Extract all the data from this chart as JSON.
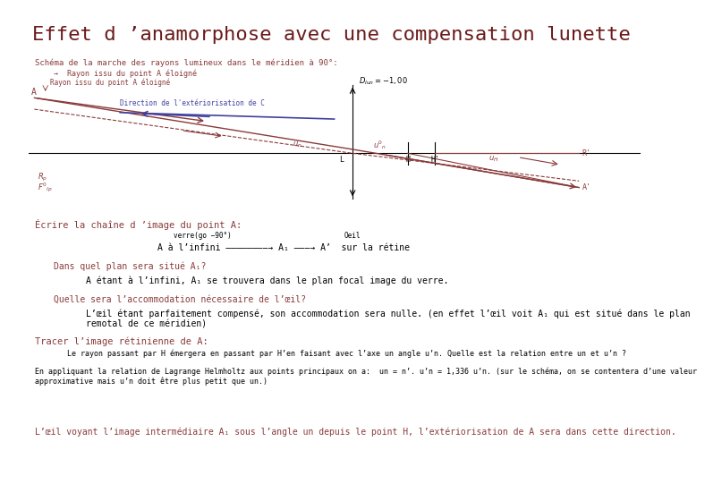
{
  "title": "Effet d ’anamorphose avec une compensation lunette",
  "title_color": "#6B1A1A",
  "title_fontsize": 16,
  "bg_color": "#FFFFFF",
  "diagram_color": "#8B3A3A",
  "blue_color": "#4040A0",
  "axis_color": "#000000",
  "subtitle": "Schéma de la marche des rayons lumineux dans le méridien à 90°:",
  "subtitle_fontsize": 7,
  "label_fontsize": 6,
  "text_color": "#8B3A3A",
  "text_color2": "#4040A0",
  "section1_title": "Écrire la chaîne d ’image du point A:",
  "section1_body": "A à l’infini ——————→ A₁ ———→ A’  sur la rétine",
  "section1_arrow1": "verre(go −90°)",
  "section1_arrow2": "Oeil",
  "section2_q": "Dans quel plan sera situé A₁?",
  "section2_a": "A étant à l’infini, A₁ se trouvera dans le plan focal image du verre.",
  "section3_q": "Quelle sera l’accommodation nécessaire de l’œil?",
  "section3_a": "L’œil étant parfaitement compensé, son accommodation sera nulle. (en effet l’œil voit A₁ qui est situé dans le plan\nremotal de ce méridien)",
  "section4_title": "Tracer l’image rétinienne de A:",
  "section4_body1": "Le rayon passant par H émergera en passant par H’en faisant avec l’axe un angle u’n. Quelle est la relation entre un et u’n ?",
  "section4_body2": "En appliquant la relation de Lagrange Helmholtz aux points principaux on a:  un = n’. u’n = 1,336 u’n. (sur le schéma, on se contentera d’une valeur\napproximative mais u’n doit être plus petit que un.)",
  "section5_body": "L’œil voyant l’image intermédiaire A₁ sous l’angle un depuis le point H, l’extériorisation de A sera dans cette direction."
}
